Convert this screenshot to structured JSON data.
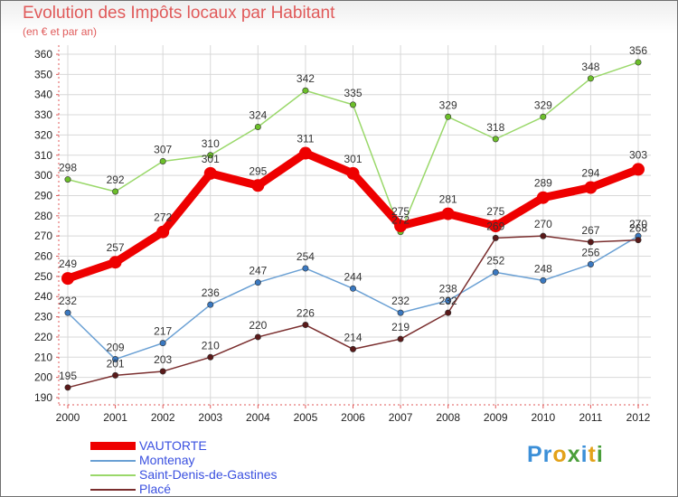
{
  "header": {
    "title": "Evolution des Impôts locaux par Habitant",
    "subtitle": "(en € et par an)"
  },
  "logo": {
    "text": "Proxiti"
  },
  "chart_data": {
    "type": "line",
    "title": "Evolution des Impôts locaux par Habitant",
    "subtitle": "(en € et par an)",
    "xlabel": "",
    "ylabel": "",
    "x": [
      "2000",
      "2001",
      "2002",
      "2003",
      "2004",
      "2005",
      "2006",
      "2007",
      "2008",
      "2009",
      "2010",
      "2011",
      "2012"
    ],
    "ylim": [
      190,
      360
    ],
    "yticks": [
      190,
      200,
      210,
      220,
      230,
      240,
      250,
      260,
      270,
      280,
      290,
      300,
      310,
      320,
      330,
      340,
      350,
      360
    ],
    "grid": true,
    "legend_position": "bottom-left",
    "series": [
      {
        "name": "VAUTORTE",
        "color": "#ee0000",
        "highlight": true,
        "values": [
          249,
          257,
          272,
          301,
          295,
          311,
          301,
          275,
          281,
          275,
          289,
          294,
          303
        ]
      },
      {
        "name": "Montenay",
        "color": "#6aa0d4",
        "values": [
          232,
          209,
          217,
          236,
          247,
          254,
          244,
          232,
          238,
          252,
          248,
          256,
          270
        ]
      },
      {
        "name": "Saint-Denis-de-Gastines",
        "color": "#9ad86a",
        "values": [
          298,
          292,
          307,
          310,
          324,
          342,
          335,
          272,
          329,
          318,
          329,
          348,
          356
        ]
      },
      {
        "name": "Placé",
        "color": "#7a2e2e",
        "values": [
          195,
          201,
          203,
          210,
          220,
          226,
          214,
          219,
          232,
          269,
          270,
          267,
          268
        ]
      }
    ]
  }
}
